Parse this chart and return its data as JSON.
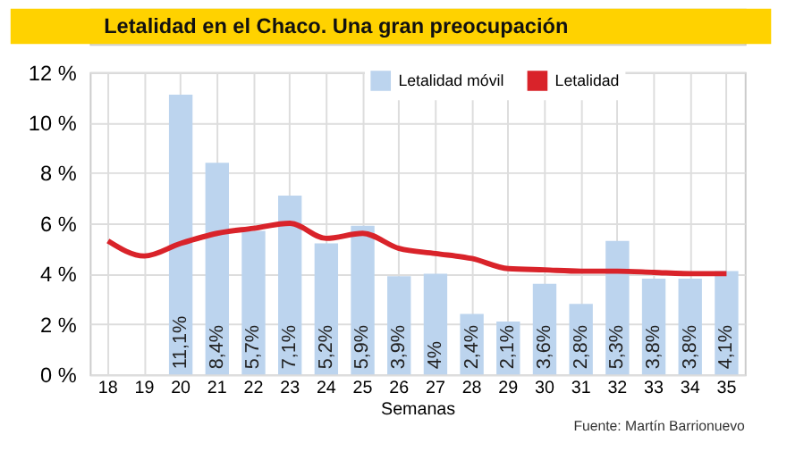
{
  "chart_data": {
    "type": "bar",
    "title": "Letalidad en el Chaco. Una gran preocupación",
    "xlabel": "Semanas",
    "categories": [
      "18",
      "19",
      "20",
      "21",
      "22",
      "23",
      "24",
      "25",
      "26",
      "27",
      "28",
      "29",
      "30",
      "31",
      "32",
      "33",
      "34",
      "35"
    ],
    "series": [
      {
        "name": "Letalidad móvil",
        "color": "#bcd4ee",
        "values": [
          null,
          null,
          11.1,
          8.4,
          5.7,
          7.1,
          5.2,
          5.9,
          3.9,
          4,
          2.4,
          2.1,
          3.6,
          2.8,
          5.3,
          3.8,
          3.8,
          4.1
        ],
        "value_labels": [
          null,
          null,
          "11,1%",
          "8,4%",
          "5,7%",
          "7,1%",
          "5,2%",
          "5,9%",
          "3,9%",
          "4%",
          "2,4%",
          "2,1%",
          "3,6%",
          "2,8%",
          "5,3%",
          "3,8%",
          "3,8%",
          "4,1%"
        ]
      },
      {
        "name": "Letalidad",
        "type": "line",
        "color": "#d9232a",
        "values": [
          5.3,
          4.7,
          5.2,
          5.6,
          5.8,
          6.0,
          5.4,
          5.6,
          5.0,
          4.8,
          4.6,
          4.2,
          4.15,
          4.1,
          4.1,
          4.05,
          4.0,
          4.0
        ]
      }
    ],
    "ylim": [
      0,
      12
    ],
    "yticks": [
      {
        "value": 0,
        "label": "0 %"
      },
      {
        "value": 2,
        "label": "2 %"
      },
      {
        "value": 4,
        "label": "4 %"
      },
      {
        "value": 6,
        "label": "6 %"
      },
      {
        "value": 8,
        "label": "8 %"
      },
      {
        "value": 10,
        "label": "10 %"
      },
      {
        "value": 12,
        "label": "12 %"
      }
    ],
    "grid": true,
    "legend": "top",
    "marker": "none",
    "line_style": "solid",
    "annotations": [
      "Fuente: Martín Barrionuevo"
    ]
  }
}
